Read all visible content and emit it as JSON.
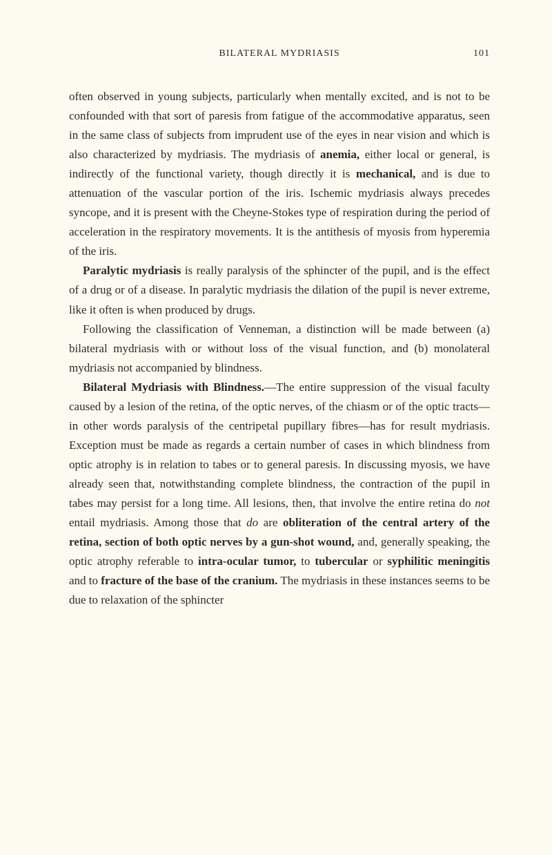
{
  "header": {
    "title": "BILATERAL MYDRIASIS",
    "page": "101"
  },
  "paragraphs": {
    "p1_part1": "often observed in young subjects, particularly when mentally excited, and is not to be confounded with that sort of paresis from fatigue of the accommodative apparatus, seen in the same class of subjects from imprudent use of the eyes in near vision and which is also characterized by mydriasis. The mydriasis of ",
    "p1_bold1": "anemia,",
    "p1_part2": " either local or general, is indirectly of the functional variety, though directly it is ",
    "p1_bold2": "mechanical,",
    "p1_part3": " and is due to attenuation of the vascular portion of the iris. Ischemic mydriasis always precedes syncope, and it is present with the Cheyne-Stokes type of respiration during the period of acceleration in the respiratory movements. It is the antithesis of myosis from hyperemia of the iris.",
    "p2_bold1": "Paralytic mydriasis",
    "p2_part1": " is really paralysis of the sphincter of the pupil, and is the effect of a drug or of a disease. In paralytic mydriasis the dilation of the pupil is never extreme, like it often is when produced by drugs.",
    "p3_part1": "Following the classification of Venneman, a distinction will be made between (a) bilateral mydriasis with or without loss of the visual function, and (b) monolateral mydriasis not accompanied by blindness.",
    "p4_bold1": "Bilateral Mydriasis with Blindness.",
    "p4_part1": "—The entire suppression of the visual faculty caused by a lesion of the retina, of the optic nerves, of the chiasm or of the optic tracts—in other words paralysis of the centripetal pupillary fibres—has for result mydriasis. Exception must be made as regards a certain number of cases in which blindness from optic atrophy is in relation to tabes or to general paresis. In discussing myosis, we have already seen that, notwithstanding complete blindness, the contraction of the pupil in tabes may persist for a long time. All lesions, then, that involve the entire retina do ",
    "p4_italic1": "not",
    "p4_part2": " entail mydriasis. Among those that ",
    "p4_italic2": "do",
    "p4_part3": " are ",
    "p4_bold2": "obliteration of the central artery of the retina, section of both optic nerves by a gun-shot wound,",
    "p4_part4": " and, generally speaking, the optic atrophy referable to ",
    "p4_bold3": "intra-ocular tumor,",
    "p4_part5": " to ",
    "p4_bold4": "tubercular",
    "p4_part6": " or ",
    "p4_bold5": "syphilitic meningitis",
    "p4_part7": " and to ",
    "p4_bold6": "fracture of the base of the cranium.",
    "p4_part8": " The mydriasis in these instances seems to be due to relaxation of the sphincter"
  }
}
